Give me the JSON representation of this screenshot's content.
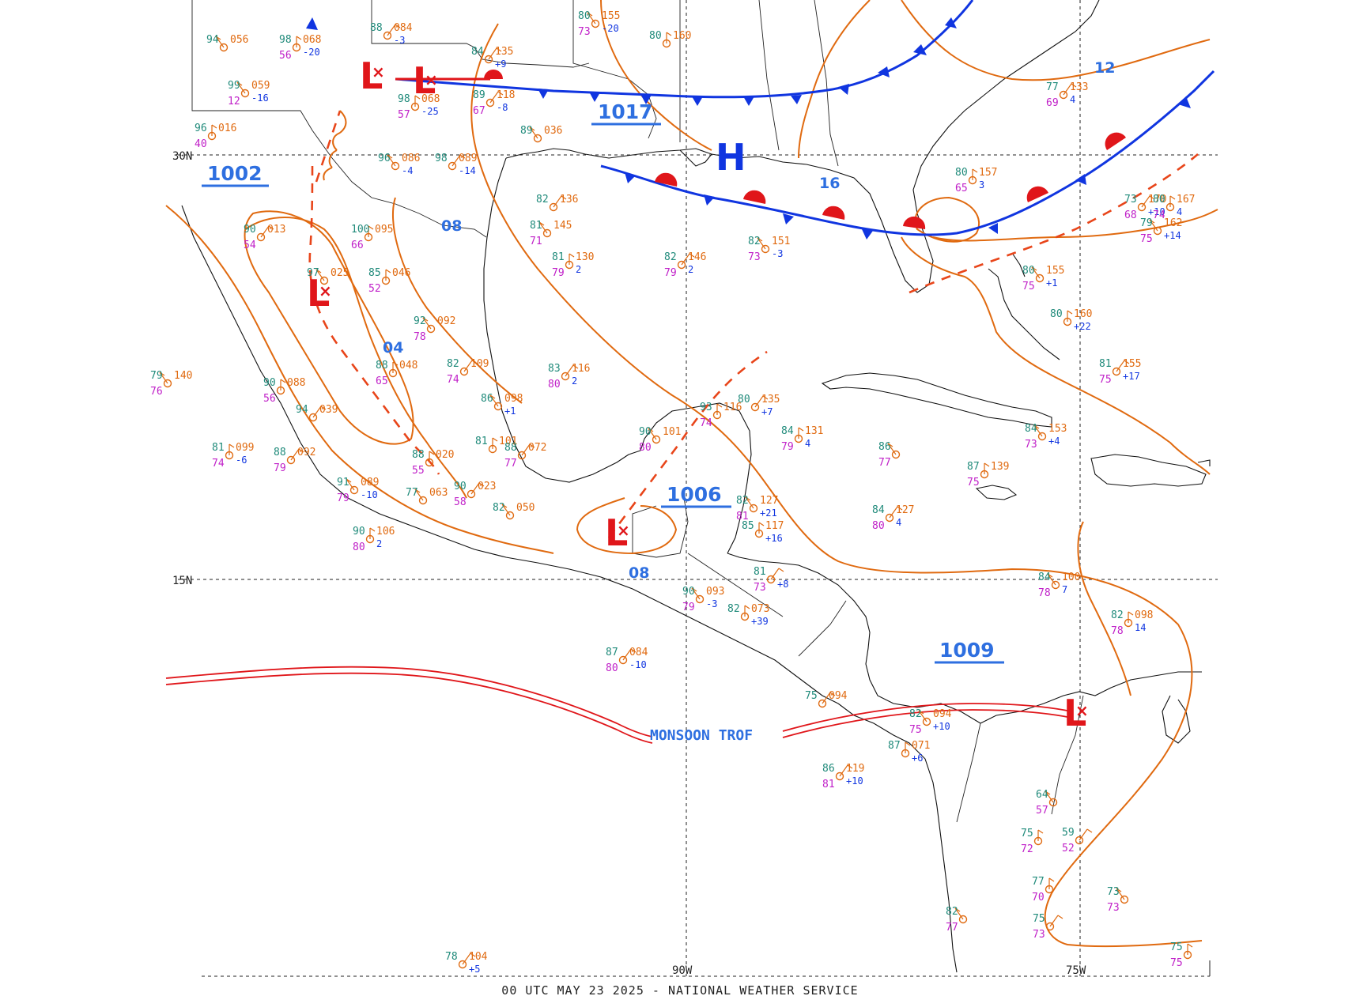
{
  "footer": "00 UTC MAY 23 2025 - NATIONAL WEATHER SERVICE",
  "grid_labels": {
    "lat_30": "30N",
    "lat_15": "15N",
    "lon_90": "90W",
    "lon_75": "75W"
  },
  "isobar_labels": [
    "1002",
    "1017",
    "1006",
    "1009",
    "12",
    "16",
    "08",
    "04",
    "08"
  ],
  "systems": [
    "L",
    "L",
    "L",
    "L",
    "L",
    "L",
    "H"
  ],
  "monsoon_label": "MONSOON TROF",
  "colors": {
    "isobar": "#e06a10",
    "cold_front": "#1035e0",
    "warm_front": "#e0161a",
    "isobar_label": "#2e6fe0",
    "temperature": "#1f8a7a",
    "dewpoint": "#c020c8",
    "pressure": "#e06a10",
    "tendency": "#1035e0"
  },
  "stations": [
    {
      "t": "94",
      "p": "056",
      "d": "",
      "x": ""
    },
    {
      "t": "98",
      "p": "068",
      "d": "56",
      "x": "-20"
    },
    {
      "t": "88",
      "p": "084",
      "d": "",
      "x": "-3"
    },
    {
      "t": "99",
      "p": "059",
      "d": "12",
      "x": "-16"
    },
    {
      "t": "98",
      "p": "068",
      "d": "57",
      "x": "-25"
    },
    {
      "t": "84",
      "p": "135",
      "d": "",
      "x": "+9"
    },
    {
      "t": "80",
      "p": "155",
      "d": "73",
      "x": "-20"
    },
    {
      "t": "80",
      "p": "160",
      "d": "",
      "x": ""
    },
    {
      "t": "89",
      "p": "118",
      "d": "67",
      "x": "-8"
    },
    {
      "t": "89",
      "p": "036",
      "d": "",
      "x": ""
    },
    {
      "t": "96",
      "p": "016",
      "d": "40",
      "x": ""
    },
    {
      "t": "98",
      "p": "089",
      "d": "",
      "x": "-14"
    },
    {
      "t": "96",
      "p": "086",
      "d": "",
      "x": "-4"
    },
    {
      "t": "100",
      "p": "095",
      "d": "66",
      "x": ""
    },
    {
      "t": "90",
      "p": "013",
      "d": "54",
      "x": ""
    },
    {
      "t": "97",
      "p": "025",
      "d": "",
      "x": ""
    },
    {
      "t": "85",
      "p": "046",
      "d": "52",
      "x": ""
    },
    {
      "t": "82",
      "p": "136",
      "d": "",
      "x": ""
    },
    {
      "t": "81",
      "p": "145",
      "d": "71",
      "x": ""
    },
    {
      "t": "81",
      "p": "130",
      "d": "79",
      "x": "2"
    },
    {
      "t": "82",
      "p": "146",
      "d": "79",
      "x": "2"
    },
    {
      "t": "82",
      "p": "151",
      "d": "73",
      "x": "-3"
    },
    {
      "t": "80",
      "p": "157",
      "d": "65",
      "x": "3"
    },
    {
      "t": "73",
      "p": "170",
      "d": "68",
      "x": "+10"
    },
    {
      "t": "79",
      "p": "162",
      "d": "75",
      "x": "+14"
    },
    {
      "t": "80",
      "p": "167",
      "d": "74",
      "x": "4"
    },
    {
      "t": "77",
      "p": "133",
      "d": "69",
      "x": "4"
    },
    {
      "t": "80",
      "p": "155",
      "d": "75",
      "x": "+1"
    },
    {
      "t": "80",
      "p": "160",
      "d": "",
      "x": "+22"
    },
    {
      "t": "81",
      "p": "155",
      "d": "75",
      "x": "+17"
    },
    {
      "t": "84",
      "p": "153",
      "d": "73",
      "x": "+4"
    },
    {
      "t": "87",
      "p": "139",
      "d": "75",
      "x": ""
    },
    {
      "t": "84",
      "p": "127",
      "d": "80",
      "x": "4"
    },
    {
      "t": "86",
      "p": "",
      "d": "77",
      "x": ""
    },
    {
      "t": "84",
      "p": "131",
      "d": "79",
      "x": "4"
    },
    {
      "t": "83",
      "p": "116",
      "d": "80",
      "x": "2"
    },
    {
      "t": "92",
      "p": "092",
      "d": "78",
      "x": ""
    },
    {
      "t": "88",
      "p": "048",
      "d": "65",
      "x": ""
    },
    {
      "t": "82",
      "p": "109",
      "d": "74",
      "x": ""
    },
    {
      "t": "86",
      "p": "098",
      "d": "",
      "x": "+1"
    },
    {
      "t": "81",
      "p": "101",
      "d": "",
      "x": ""
    },
    {
      "t": "88",
      "p": "072",
      "d": "77",
      "x": ""
    },
    {
      "t": "90",
      "p": "101",
      "d": "80",
      "x": ""
    },
    {
      "t": "93",
      "p": "116",
      "d": "74",
      "x": ""
    },
    {
      "t": "80",
      "p": "135",
      "d": "",
      "x": "+7"
    },
    {
      "t": "82",
      "p": "127",
      "d": "81",
      "x": "+21"
    },
    {
      "t": "85",
      "p": "117",
      "d": "",
      "x": "+16"
    },
    {
      "t": "81",
      "p": "",
      "d": "73",
      "x": "+8"
    },
    {
      "t": "90",
      "p": "093",
      "d": "79",
      "x": "-3"
    },
    {
      "t": "82",
      "p": "073",
      "d": "",
      "x": "+39"
    },
    {
      "t": "87",
      "p": "084",
      "d": "80",
      "x": "-10"
    },
    {
      "t": "91",
      "p": "089",
      "d": "79",
      "x": "-10"
    },
    {
      "t": "90",
      "p": "106",
      "d": "80",
      "x": "2"
    },
    {
      "t": "90",
      "p": "023",
      "d": "58",
      "x": ""
    },
    {
      "t": "82",
      "p": "050",
      "d": "",
      "x": ""
    },
    {
      "t": "81",
      "p": "099",
      "d": "74",
      "x": "-6"
    },
    {
      "t": "88",
      "p": "092",
      "d": "79",
      "x": ""
    },
    {
      "t": "79",
      "p": "140",
      "d": "76",
      "x": ""
    },
    {
      "t": "90",
      "p": "088",
      "d": "56",
      "x": ""
    },
    {
      "t": "94",
      "p": "039",
      "d": "",
      "x": ""
    },
    {
      "t": "77",
      "p": "063",
      "d": "",
      "x": ""
    },
    {
      "t": "88",
      "p": "020",
      "d": "55",
      "x": ""
    },
    {
      "t": "75",
      "p": "094",
      "d": "",
      "x": ""
    },
    {
      "t": "82",
      "p": "094",
      "d": "75",
      "x": "+10"
    },
    {
      "t": "87",
      "p": "071",
      "d": "",
      "x": "+6"
    },
    {
      "t": "86",
      "p": "119",
      "d": "81",
      "x": "+10"
    },
    {
      "t": "84",
      "p": "100",
      "d": "78",
      "x": "7"
    },
    {
      "t": "82",
      "p": "098",
      "d": "78",
      "x": "14"
    },
    {
      "t": "78",
      "p": "104",
      "d": "",
      "x": "+5"
    },
    {
      "t": "64",
      "p": "",
      "d": "57",
      "x": ""
    },
    {
      "t": "75",
      "p": "",
      "d": "72",
      "x": ""
    },
    {
      "t": "59",
      "p": "",
      "d": "52",
      "x": ""
    },
    {
      "t": "73",
      "p": "",
      "d": "73",
      "x": ""
    },
    {
      "t": "77",
      "p": "",
      "d": "70",
      "x": ""
    },
    {
      "t": "75",
      "p": "",
      "d": "73",
      "x": ""
    },
    {
      "t": "82",
      "p": "",
      "d": "77",
      "x": ""
    },
    {
      "t": "75",
      "p": "",
      "d": "75",
      "x": ""
    }
  ]
}
